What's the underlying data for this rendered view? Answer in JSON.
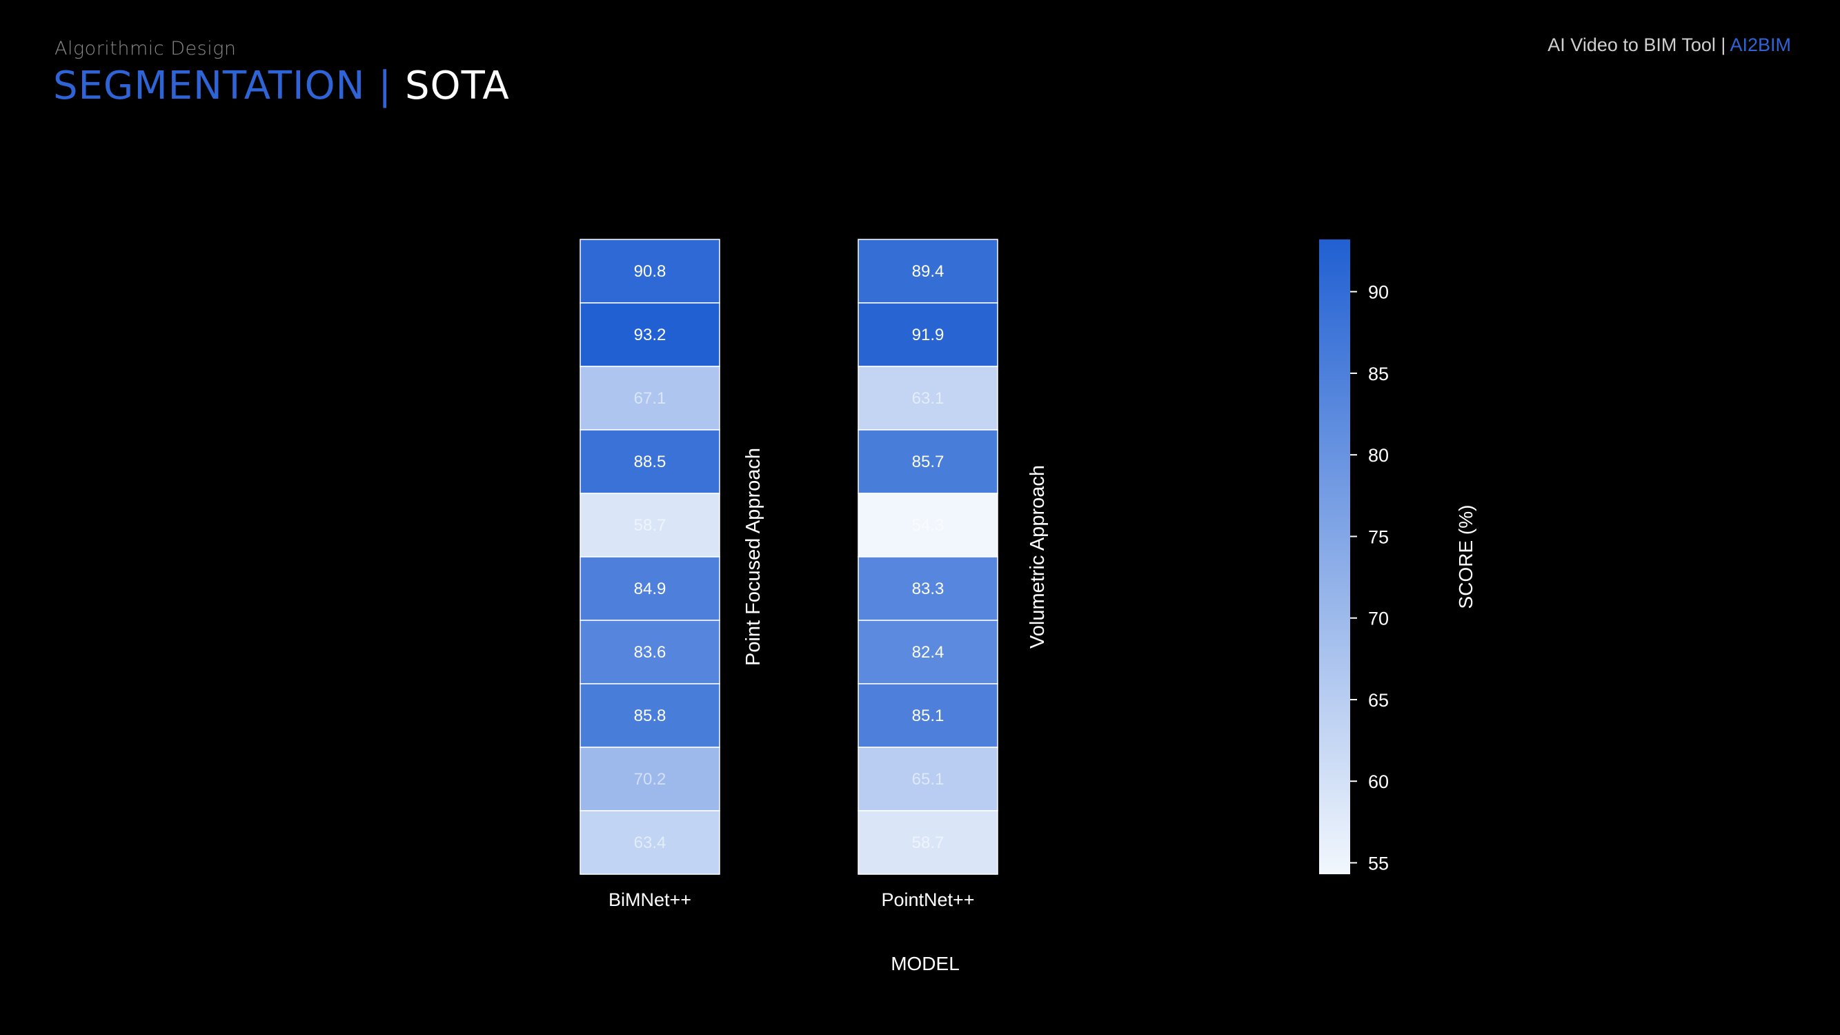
{
  "header": {
    "section_label": "Algorithmic Design",
    "title_accent": "SEGMENTATION",
    "title_separator": "|",
    "title_plain": "SOTA",
    "brand_text": "AI Video to BIM Tool |",
    "brand_accent": "AI2BIM"
  },
  "colors": {
    "background": "#000000",
    "accent": "#2f64d6",
    "colormap_low": "#f2f7fd",
    "colormap_high": "#2160d2"
  },
  "chart_data": {
    "type": "heatmap",
    "xlabel": "MODEL",
    "colorbar_label": "SCORE (%)",
    "color_range": [
      54.3,
      93.2
    ],
    "colorbar_ticks": [
      55,
      60,
      65,
      70,
      75,
      80,
      85,
      90
    ],
    "columns": [
      {
        "model": "BiMNet++",
        "group_label": "Point Focused Approach",
        "values": [
          90.8,
          93.2,
          67.1,
          88.5,
          58.7,
          84.9,
          83.6,
          85.8,
          70.2,
          63.4
        ]
      },
      {
        "model": "PointNet++",
        "group_label": "Volumetric Approach",
        "values": [
          89.4,
          91.9,
          63.1,
          85.7,
          54.3,
          83.3,
          82.4,
          85.1,
          65.1,
          58.7
        ]
      }
    ]
  }
}
